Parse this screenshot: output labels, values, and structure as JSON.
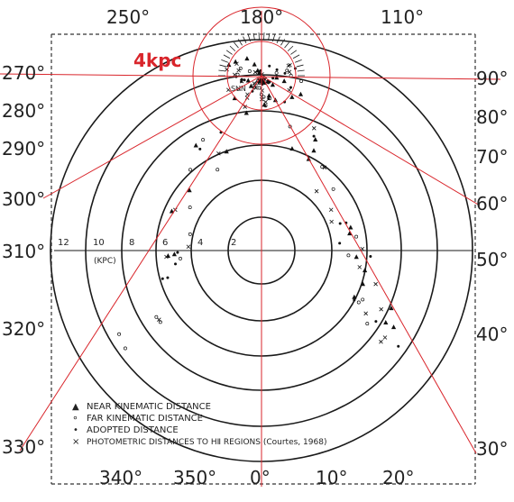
{
  "colors": {
    "ink": "#1a1a1a",
    "overlay": "#d9252b",
    "paper": "#ffffff"
  },
  "overlay_label": "4kpc",
  "top_longitudes": [
    "250°",
    "180°",
    "110°"
  ],
  "left_longitudes": [
    "270°",
    "280°",
    "290°",
    "300°",
    "310°",
    "320°",
    "330°"
  ],
  "right_longitudes": [
    "90°",
    "80°",
    "70°",
    "60°",
    "50°",
    "40°",
    "30°"
  ],
  "bottom_longitudes": [
    "340°",
    "350°",
    "0°",
    "10°",
    "20°"
  ],
  "scale_ticks": [
    "12",
    "10",
    "8",
    "6",
    "4",
    "2"
  ],
  "scale_unit": "(KPC)",
  "sun_label": "SUN",
  "legend": [
    {
      "symbol": "▲",
      "text": "NEAR KINEMATIC DISTANCE"
    },
    {
      "symbol": "∘",
      "text": "FAR KINEMATIC DISTANCE"
    },
    {
      "symbol": "•",
      "text": "ADOPTED DISTANCE"
    },
    {
      "symbol": "×",
      "text": "PHOTOMETRIC DISTANCES TO HⅡ REGIONS (Courtes, 1968)"
    }
  ]
}
